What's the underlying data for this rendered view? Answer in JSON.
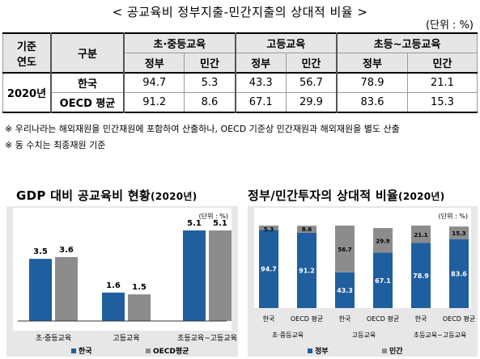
{
  "page_title": "< 공교육비 정부지출-민간지출의 상대적 비율 >",
  "unit": "(단위 : %)",
  "table": {
    "h_year": "기준\n연도",
    "h_group": "구분",
    "groups": [
      "초·중등교육",
      "고등교육",
      "초등~고등교육"
    ],
    "sub_headers": [
      "정부",
      "민간",
      "정부",
      "민간",
      "정부",
      "민간"
    ],
    "year": "2020년",
    "rows": [
      {
        "label": "한국",
        "values": [
          "94.7",
          "5.3",
          "43.3",
          "56.7",
          "78.9",
          "21.1"
        ]
      },
      {
        "label": "OECD 평균",
        "values": [
          "91.2",
          "8.6",
          "67.1",
          "29.9",
          "83.6",
          "15.3"
        ]
      }
    ]
  },
  "notes": [
    "※ 우리나라는 해외재원을 민간재원에 포함하여 산출하나, OECD 기준상 민간재원과 해외재원을 별도 산출",
    "※ 동 수치는 최종재원 기준"
  ],
  "left_chart_title": "GDP 대비 공교육비 현황",
  "left_chart_year": "(2020년)",
  "right_chart_title": "정부/민간투자의 상대적 비율",
  "right_chart_year": "(2020년)",
  "chart_data": [
    {
      "type": "bar",
      "title": "GDP 대비 공교육비 현황(2020년)",
      "unit_label": "(단위 : %)",
      "categories": [
        "초·중등교육",
        "고등교육",
        "초등교육~고등교육"
      ],
      "series": [
        {
          "name": "한국",
          "values": [
            3.5,
            1.6,
            5.1
          ],
          "color": "#1f5fa0"
        },
        {
          "name": "OECD평균",
          "values": [
            3.6,
            1.5,
            5.1
          ],
          "color": "#8c8c8c"
        }
      ],
      "ylim": [
        0,
        5.1
      ],
      "legend": "bottom"
    },
    {
      "type": "bar",
      "stacked": true,
      "title": "정부/민간투자의 상대적 비율(2020년)",
      "unit_label": "(단위 : %)",
      "categories": [
        "한국",
        "OECD 평균",
        "한국",
        "OECD 평균",
        "한국",
        "OECD 평균"
      ],
      "groups": [
        "초·중등교육",
        "고등교육",
        "초등교육~고등교육"
      ],
      "series": [
        {
          "name": "정부",
          "values": [
            94.7,
            91.2,
            43.3,
            67.1,
            78.9,
            83.6
          ],
          "color": "#1f5fa0"
        },
        {
          "name": "민간",
          "values": [
            5.3,
            8.6,
            56.7,
            29.9,
            21.1,
            15.3
          ],
          "color": "#8c8c8c"
        }
      ],
      "ylim": [
        0,
        100
      ],
      "legend": "bottom"
    }
  ]
}
